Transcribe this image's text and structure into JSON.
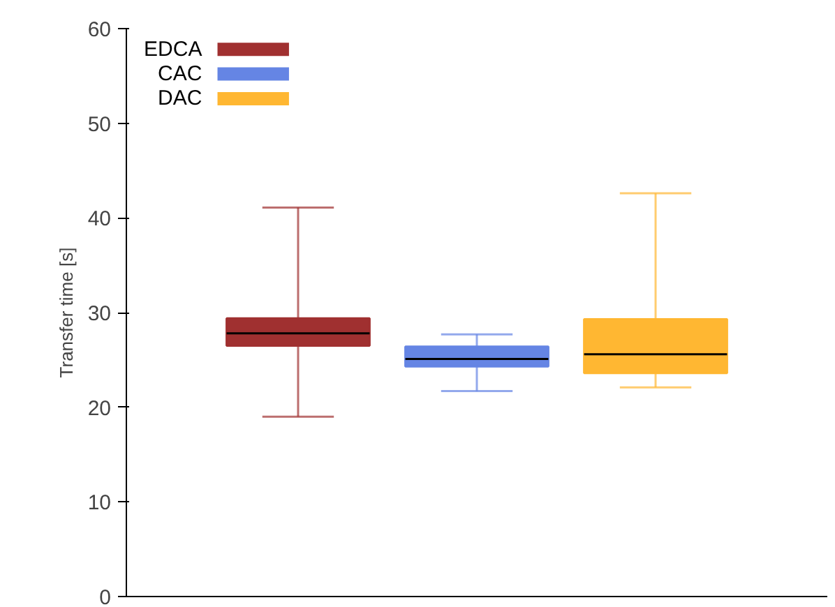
{
  "chart_data": {
    "type": "box",
    "ylabel": "Transfer time [s]",
    "categories": [
      null
    ],
    "ylim": [
      0,
      60
    ],
    "yticks": [
      0,
      10,
      20,
      30,
      40,
      50,
      60
    ],
    "grid": false,
    "legend": "top left",
    "tick_labels": "y",
    "series": [
      {
        "name": "EDCA",
        "color": "#a03030",
        "boxes": [
          {
            "low": 19.0,
            "q1": 26.5,
            "median": 27.8,
            "q3": 29.4,
            "high": 41.1
          }
        ]
      },
      {
        "name": "CAC",
        "color": "#6585e4",
        "boxes": [
          {
            "low": 21.7,
            "q1": 24.3,
            "median": 25.1,
            "q3": 26.4,
            "high": 27.7
          }
        ]
      },
      {
        "name": "DAC",
        "color": "#ffb732",
        "boxes": [
          {
            "low": 22.1,
            "q1": 23.6,
            "median": 25.6,
            "q3": 29.3,
            "high": 42.6
          }
        ]
      }
    ]
  }
}
